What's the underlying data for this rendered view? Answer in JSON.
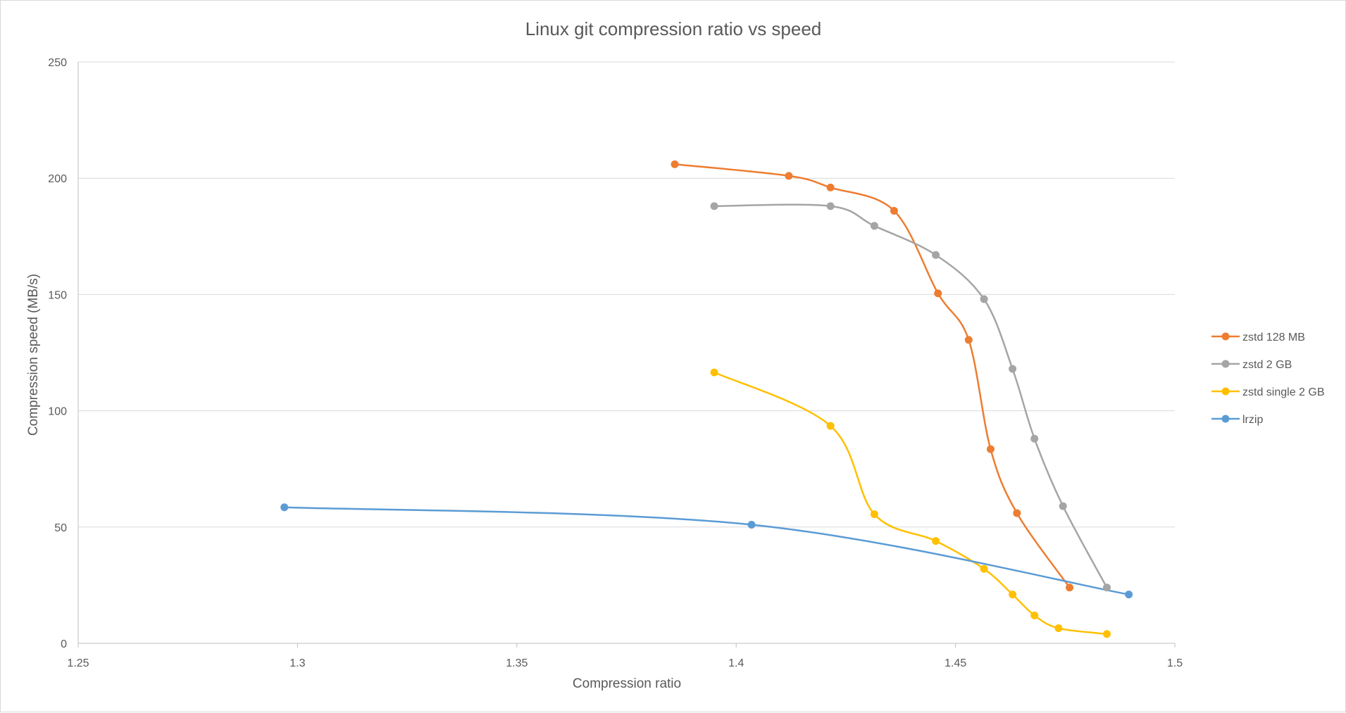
{
  "chart_data": {
    "type": "line",
    "title": "Linux git compression ratio vs speed",
    "xlabel": "Compression ratio",
    "ylabel": "Compression speed (MB/s)",
    "xlim": [
      1.25,
      1.5
    ],
    "ylim": [
      0,
      250
    ],
    "x_ticks": [
      1.25,
      1.3,
      1.35,
      1.4,
      1.45,
      1.5
    ],
    "x_tick_labels": [
      "1.25",
      "1.3",
      "1.35",
      "1.4",
      "1.45",
      "1.5"
    ],
    "y_ticks": [
      0,
      50,
      100,
      150,
      200,
      250
    ],
    "y_tick_labels": [
      "0",
      "50",
      "100",
      "150",
      "200",
      "250"
    ],
    "grid": "horizontal",
    "smooth": true,
    "legend_position": "right",
    "series": [
      {
        "name": "zstd 128 MB",
        "color": "#ED7D31",
        "points": [
          [
            1.386,
            206
          ],
          [
            1.412,
            201
          ],
          [
            1.4215,
            196
          ],
          [
            1.436,
            186
          ],
          [
            1.446,
            150.5
          ],
          [
            1.453,
            130.5
          ],
          [
            1.458,
            83.5
          ],
          [
            1.464,
            56
          ],
          [
            1.476,
            24
          ]
        ]
      },
      {
        "name": "zstd 2 GB",
        "color": "#A5A5A5",
        "points": [
          [
            1.395,
            188
          ],
          [
            1.4215,
            188
          ],
          [
            1.4315,
            179.5
          ],
          [
            1.4455,
            167
          ],
          [
            1.4565,
            148
          ],
          [
            1.463,
            118
          ],
          [
            1.468,
            88
          ],
          [
            1.4745,
            59
          ],
          [
            1.4845,
            24
          ]
        ]
      },
      {
        "name": "zstd single 2 GB",
        "color": "#FFC000",
        "points": [
          [
            1.395,
            116.5
          ],
          [
            1.4215,
            93.5
          ],
          [
            1.4315,
            55.5
          ],
          [
            1.4455,
            44
          ],
          [
            1.4565,
            32
          ],
          [
            1.463,
            21
          ],
          [
            1.468,
            12
          ],
          [
            1.4735,
            6.5
          ],
          [
            1.4845,
            4
          ]
        ]
      },
      {
        "name": "lrzip",
        "color": "#5B9BD5",
        "points": [
          [
            1.297,
            58.5
          ],
          [
            1.4035,
            51
          ],
          [
            1.4895,
            21
          ]
        ]
      }
    ]
  }
}
